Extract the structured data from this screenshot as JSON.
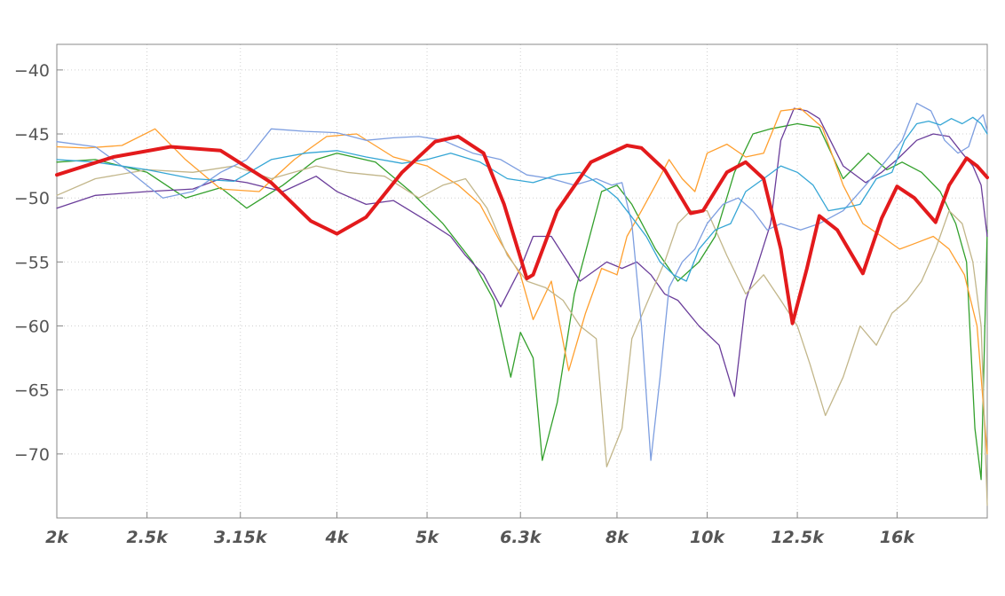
{
  "chart_data": {
    "type": "line",
    "title": "",
    "xlabel": "",
    "ylabel": "",
    "x_scale": "log",
    "xlim": [
      2000,
      20000
    ],
    "ylim": [
      -75,
      -38
    ],
    "grid": true,
    "legend": "none",
    "x_ticks": [
      {
        "value": 2000,
        "label": "2k"
      },
      {
        "value": 2500,
        "label": "2.5k"
      },
      {
        "value": 3150,
        "label": "3.15k"
      },
      {
        "value": 4000,
        "label": "4k"
      },
      {
        "value": 5000,
        "label": "5k"
      },
      {
        "value": 6300,
        "label": "6.3k"
      },
      {
        "value": 8000,
        "label": "8k"
      },
      {
        "value": 10000,
        "label": "10k"
      },
      {
        "value": 12500,
        "label": "12.5k"
      },
      {
        "value": 16000,
        "label": "16k"
      }
    ],
    "y_ticks": [
      {
        "value": -40,
        "label": "−40"
      },
      {
        "value": -45,
        "label": "−45"
      },
      {
        "value": -50,
        "label": "−50"
      },
      {
        "value": -55,
        "label": "−55"
      },
      {
        "value": -60,
        "label": "−60"
      },
      {
        "value": -65,
        "label": "−65"
      },
      {
        "value": -70,
        "label": "−70"
      }
    ],
    "series": [
      {
        "color": "#e31a1c",
        "emphasis": true,
        "x": [
          2000,
          2300,
          2650,
          3000,
          3400,
          3750,
          4000,
          4300,
          4700,
          5100,
          5400,
          5750,
          6050,
          6400,
          6500,
          6900,
          7500,
          8200,
          8500,
          9000,
          9600,
          9900,
          10500,
          11000,
          11500,
          12000,
          12350,
          12800,
          13200,
          13800,
          14700,
          15400,
          16000,
          16700,
          17600,
          18200,
          19000,
          19500,
          20000
        ],
        "y": [
          -48.2,
          -46.8,
          -46.0,
          -46.3,
          -48.8,
          -51.8,
          -52.8,
          -51.5,
          -48.0,
          -45.6,
          -45.2,
          -46.5,
          -50.5,
          -56.3,
          -56.0,
          -51.0,
          -47.2,
          -45.9,
          -46.1,
          -47.8,
          -51.2,
          -51.0,
          -48.0,
          -47.2,
          -48.5,
          -54.0,
          -59.8,
          -55.5,
          -51.4,
          -52.5,
          -55.9,
          -51.6,
          -49.1,
          -50.0,
          -51.9,
          -49.0,
          -46.9,
          -47.5,
          -48.4
        ]
      },
      {
        "color": "#33a02c",
        "x": [
          2000,
          2200,
          2500,
          2750,
          3000,
          3200,
          3500,
          3800,
          4000,
          4400,
          4800,
          5200,
          5600,
          5900,
          6150,
          6300,
          6500,
          6650,
          6900,
          7200,
          7700,
          8000,
          8300,
          8800,
          9300,
          9800,
          10200,
          10700,
          11200,
          11700,
          12500,
          13200,
          14000,
          14900,
          15600,
          16200,
          17000,
          17800,
          18500,
          19000,
          19400,
          19700,
          20000
        ],
        "y": [
          -47.2,
          -47.0,
          -48.0,
          -50.0,
          -49.2,
          -50.8,
          -49.0,
          -47.0,
          -46.5,
          -47.2,
          -49.5,
          -52.0,
          -55.0,
          -58.0,
          -64.0,
          -60.5,
          -62.5,
          -70.5,
          -66.0,
          -57.5,
          -49.5,
          -49.0,
          -50.5,
          -54.0,
          -56.5,
          -55.0,
          -53.0,
          -48.0,
          -45.0,
          -44.6,
          -44.2,
          -44.5,
          -48.5,
          -46.5,
          -47.8,
          -47.2,
          -48.0,
          -49.5,
          -52.0,
          -55.0,
          -68.0,
          -72.0,
          -52.5
        ]
      },
      {
        "color": "#6a3d9a",
        "x": [
          2000,
          2200,
          2500,
          2800,
          3000,
          3200,
          3500,
          3800,
          4000,
          4300,
          4600,
          5000,
          5300,
          5500,
          5750,
          6000,
          6300,
          6500,
          6800,
          7300,
          7800,
          8100,
          8400,
          8700,
          9000,
          9300,
          9800,
          10300,
          10700,
          11000,
          11300,
          11700,
          12000,
          12400,
          12800,
          13200,
          14000,
          14800,
          15400,
          16000,
          16800,
          17500,
          18200,
          18800,
          19300,
          19700,
          20000
        ],
        "y": [
          -50.8,
          -49.8,
          -49.5,
          -49.3,
          -48.5,
          -48.8,
          -49.5,
          -48.3,
          -49.5,
          -50.5,
          -50.2,
          -51.8,
          -53.0,
          -54.5,
          -56.0,
          -58.5,
          -55.5,
          -53.0,
          -53.0,
          -56.5,
          -55.0,
          -55.5,
          -55.0,
          -56.0,
          -57.5,
          -58.0,
          -60.0,
          -61.5,
          -65.5,
          -58.0,
          -55.5,
          -52.0,
          -45.5,
          -43.0,
          -43.2,
          -43.8,
          -47.5,
          -48.8,
          -48.0,
          -47.0,
          -45.5,
          -45.0,
          -45.2,
          -46.5,
          -47.5,
          -49.0,
          -53.0
        ]
      },
      {
        "color": "#ff9f2e",
        "x": [
          2000,
          2150,
          2350,
          2550,
          2750,
          3000,
          3300,
          3600,
          3900,
          4200,
          4600,
          5000,
          5400,
          5700,
          6000,
          6300,
          6500,
          6800,
          7100,
          7400,
          7700,
          8000,
          8200,
          8500,
          8800,
          9100,
          9400,
          9700,
          10000,
          10500,
          11000,
          11500,
          12000,
          12600,
          13300,
          14000,
          14700,
          15400,
          16100,
          16800,
          17500,
          18200,
          18900,
          19500,
          20000
        ],
        "y": [
          -46.0,
          -46.1,
          -45.9,
          -44.6,
          -47.0,
          -49.3,
          -49.5,
          -47.0,
          -45.2,
          -45.0,
          -46.8,
          -47.5,
          -49.0,
          -50.5,
          -53.5,
          -56.0,
          -59.5,
          -56.5,
          -63.5,
          -59.0,
          -55.5,
          -56.0,
          -53.0,
          -51.0,
          -49.0,
          -47.0,
          -48.5,
          -49.5,
          -46.5,
          -45.8,
          -46.8,
          -46.5,
          -43.2,
          -43.0,
          -44.5,
          -49.0,
          -52.0,
          -53.0,
          -54.0,
          -53.5,
          -53.0,
          -54.0,
          -56.0,
          -60.0,
          -70.0
        ]
      },
      {
        "color": "#c2b68a",
        "x": [
          2000,
          2200,
          2500,
          2800,
          3100,
          3400,
          3800,
          4100,
          4500,
          4900,
          5200,
          5500,
          5800,
          6100,
          6400,
          6700,
          7000,
          7300,
          7600,
          7800,
          8100,
          8300,
          8700,
          9000,
          9300,
          9600,
          10000,
          10500,
          11000,
          11500,
          12000,
          12500,
          12900,
          13400,
          14000,
          14600,
          15200,
          15800,
          16400,
          17000,
          17600,
          18200,
          18800,
          19300,
          19700,
          20000
        ],
        "y": [
          -49.8,
          -48.5,
          -47.8,
          -48.0,
          -47.5,
          -48.5,
          -47.5,
          -48.0,
          -48.3,
          -50.0,
          -49.0,
          -48.5,
          -50.8,
          -54.5,
          -56.5,
          -57.0,
          -58.0,
          -60.0,
          -61.0,
          -71.0,
          -68.0,
          -61.0,
          -57.5,
          -55.0,
          -52.0,
          -51.0,
          -51.0,
          -54.5,
          -57.5,
          -56.0,
          -58.0,
          -60.0,
          -63.0,
          -67.0,
          -64.0,
          -60.0,
          -61.5,
          -59.0,
          -58.0,
          -56.5,
          -54.0,
          -51.0,
          -52.0,
          -55.0,
          -60.0,
          -74.0
        ]
      },
      {
        "color": "#7d9ee0",
        "x": [
          2000,
          2200,
          2400,
          2600,
          2800,
          3000,
          3200,
          3400,
          3700,
          4000,
          4300,
          4600,
          4900,
          5200,
          5600,
          6000,
          6400,
          6800,
          7200,
          7600,
          7900,
          8100,
          8300,
          8500,
          8700,
          8900,
          9100,
          9400,
          9700,
          10000,
          10400,
          10800,
          11200,
          11600,
          12000,
          12600,
          13200,
          14000,
          14800,
          15600,
          16200,
          16800,
          17400,
          18000,
          18600,
          19100,
          19500,
          19800,
          20000
        ],
        "y": [
          -45.6,
          -46.0,
          -48.0,
          -50.0,
          -49.5,
          -48.0,
          -47.0,
          -44.6,
          -44.8,
          -44.9,
          -45.5,
          -45.3,
          -45.2,
          -45.5,
          -46.5,
          -47.0,
          -48.2,
          -48.5,
          -49.0,
          -48.5,
          -49.0,
          -48.8,
          -52.0,
          -60.0,
          -70.5,
          -64.0,
          -57.0,
          -55.0,
          -54.0,
          -52.0,
          -50.5,
          -50.0,
          -51.0,
          -52.5,
          -52.0,
          -52.5,
          -52.0,
          -51.0,
          -49.0,
          -47.0,
          -45.5,
          -42.6,
          -43.2,
          -45.5,
          -46.5,
          -46.0,
          -44.0,
          -43.5,
          -44.8
        ]
      },
      {
        "color": "#35a6d5",
        "x": [
          2000,
          2200,
          2500,
          2800,
          3100,
          3400,
          3700,
          4000,
          4300,
          4700,
          5000,
          5300,
          5700,
          6100,
          6500,
          6900,
          7300,
          7700,
          8000,
          8300,
          8600,
          8900,
          9200,
          9500,
          9800,
          10200,
          10600,
          11000,
          11500,
          12000,
          12500,
          13000,
          13500,
          14000,
          14600,
          15200,
          15800,
          16300,
          16800,
          17300,
          17800,
          18300,
          18800,
          19300,
          19700,
          20000
        ],
        "y": [
          -47.0,
          -47.2,
          -47.8,
          -48.5,
          -48.7,
          -47.0,
          -46.5,
          -46.3,
          -46.8,
          -47.3,
          -47.0,
          -46.5,
          -47.2,
          -48.5,
          -48.8,
          -48.2,
          -48.0,
          -49.0,
          -50.0,
          -51.5,
          -53.0,
          -55.0,
          -56.0,
          -56.5,
          -54.0,
          -52.5,
          -52.0,
          -49.5,
          -48.5,
          -47.5,
          -48.0,
          -49.0,
          -51.0,
          -50.8,
          -50.5,
          -48.5,
          -48.0,
          -45.5,
          -44.2,
          -44.0,
          -44.3,
          -43.8,
          -44.2,
          -43.7,
          -44.2,
          -45.0
        ]
      }
    ]
  }
}
